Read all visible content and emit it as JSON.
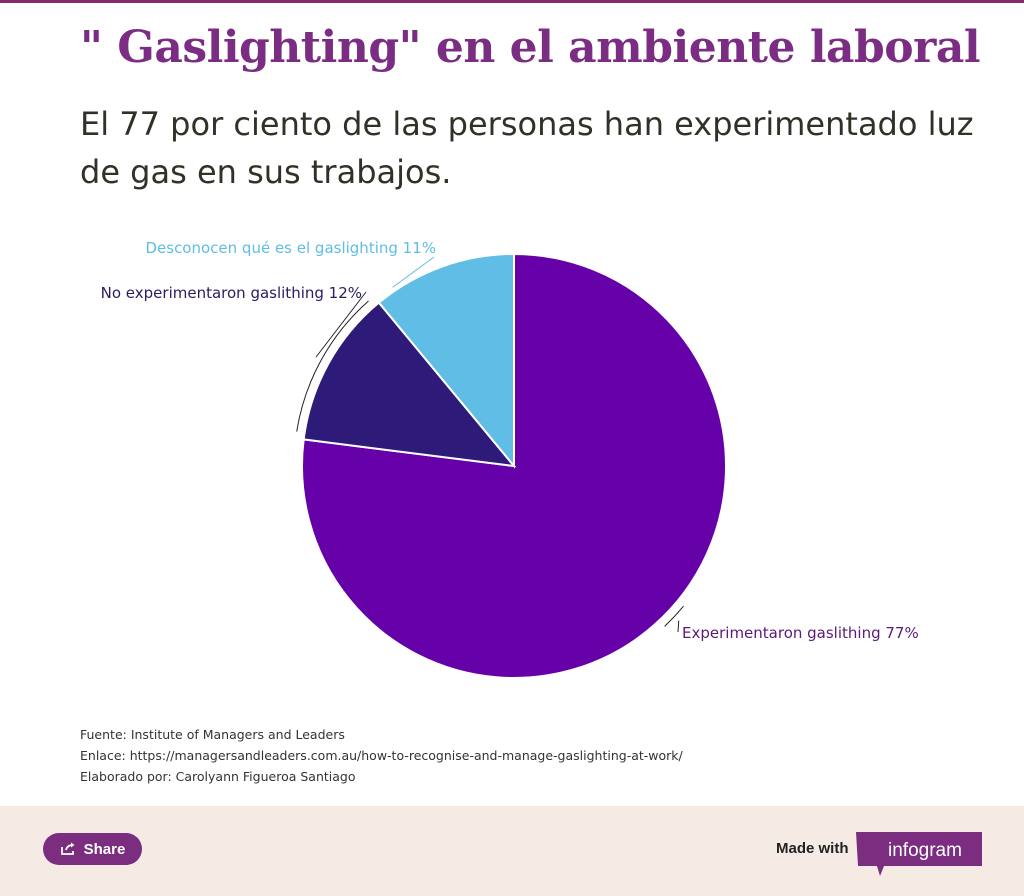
{
  "header": {
    "title": "\" Gaslighting\" en el ambiente laboral",
    "subtitle": "El 77 por ciento de las personas han experimentado luz de gas en sus trabajos."
  },
  "chart_data": {
    "type": "pie",
    "slices": [
      {
        "label": "Experimentaron gaslithing 77%",
        "value": 77,
        "color": "#6600a8"
      },
      {
        "label": "No experimentaron gaslithing 12%",
        "value": 12,
        "color": "#2e1a78"
      },
      {
        "label": "Desconocen qué es el gaslighting 11%",
        "value": 11,
        "color": "#5fbde6"
      }
    ],
    "start": "12 o'clock, clockwise"
  },
  "footer": {
    "source": "Fuente: Institute of Managers and Leaders",
    "link": "Enlace: https://managersandleaders.com.au/how-to-recognise-and-manage-gaslighting-at-work/",
    "author": "Elaborado por: Carolyann Figueroa Santiago"
  },
  "bottom_bar": {
    "share_label": "Share",
    "made_with": "Made with",
    "brand": "infogram",
    "share_icon": "share-icon",
    "accent": "#7b2d80"
  }
}
